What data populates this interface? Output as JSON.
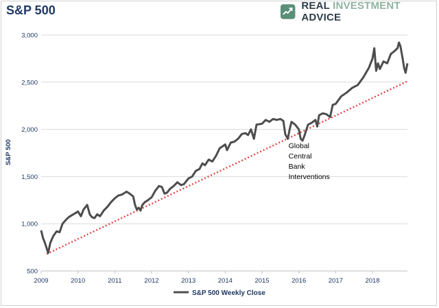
{
  "chart_data": {
    "type": "line",
    "title": "S&P 500",
    "ylabel": "S&P 500",
    "xlabel": "",
    "xlim": [
      2009,
      2018.95
    ],
    "ylim": [
      500,
      3000
    ],
    "yticks": [
      500,
      1000,
      1500,
      2000,
      2500,
      3000
    ],
    "ytick_labels": [
      "500",
      "1,000",
      "1,500",
      "2,000",
      "2,500",
      "3,000"
    ],
    "xticks": [
      2009,
      2010,
      2011,
      2012,
      2013,
      2014,
      2015,
      2016,
      2017,
      2018
    ],
    "xtick_labels": [
      "2009",
      "2010",
      "2011",
      "2012",
      "2013",
      "2014",
      "2015",
      "2016",
      "2017",
      "2018"
    ],
    "grid": "horizontal",
    "legend": "bottom-center",
    "series": [
      {
        "name": "S&P 500 Weekly Close",
        "color": "#4d4d4d",
        "x": [
          2009.0,
          2009.05,
          2009.1,
          2009.15,
          2009.19,
          2009.25,
          2009.33,
          2009.42,
          2009.5,
          2009.58,
          2009.67,
          2009.75,
          2009.83,
          2009.92,
          2010.0,
          2010.08,
          2010.15,
          2010.25,
          2010.32,
          2010.38,
          2010.45,
          2010.52,
          2010.6,
          2010.7,
          2010.8,
          2010.9,
          2011.0,
          2011.1,
          2011.2,
          2011.32,
          2011.4,
          2011.5,
          2011.55,
          2011.6,
          2011.65,
          2011.7,
          2011.75,
          2011.82,
          2011.9,
          2012.0,
          2012.1,
          2012.2,
          2012.28,
          2012.35,
          2012.42,
          2012.5,
          2012.6,
          2012.7,
          2012.8,
          2012.88,
          2013.0,
          2013.1,
          2013.2,
          2013.3,
          2013.38,
          2013.45,
          2013.55,
          2013.65,
          2013.75,
          2013.85,
          2014.0,
          2014.05,
          2014.15,
          2014.25,
          2014.35,
          2014.45,
          2014.55,
          2014.62,
          2014.7,
          2014.78,
          2014.85,
          2015.0,
          2015.1,
          2015.2,
          2015.3,
          2015.4,
          2015.5,
          2015.58,
          2015.63,
          2015.7,
          2015.75,
          2015.8,
          2015.9,
          2016.0,
          2016.05,
          2016.1,
          2016.15,
          2016.25,
          2016.35,
          2016.45,
          2016.5,
          2016.55,
          2016.65,
          2016.75,
          2016.85,
          2016.92,
          2017.0,
          2017.15,
          2017.3,
          2017.45,
          2017.6,
          2017.75,
          2017.9,
          2018.0,
          2018.05,
          2018.1,
          2018.15,
          2018.2,
          2018.3,
          2018.4,
          2018.5,
          2018.6,
          2018.68,
          2018.72,
          2018.76,
          2018.82,
          2018.86,
          2018.9,
          2018.95
        ],
        "values": [
          930,
          850,
          800,
          740,
          690,
          800,
          870,
          920,
          910,
          1000,
          1040,
          1070,
          1090,
          1110,
          1130,
          1080,
          1150,
          1200,
          1100,
          1070,
          1060,
          1100,
          1080,
          1140,
          1180,
          1230,
          1270,
          1300,
          1310,
          1340,
          1320,
          1290,
          1200,
          1150,
          1170,
          1140,
          1200,
          1230,
          1250,
          1280,
          1350,
          1400,
          1390,
          1320,
          1330,
          1370,
          1400,
          1440,
          1410,
          1420,
          1480,
          1500,
          1560,
          1580,
          1640,
          1620,
          1680,
          1660,
          1720,
          1800,
          1840,
          1780,
          1860,
          1870,
          1900,
          1950,
          1960,
          1940,
          2000,
          1900,
          2050,
          2060,
          2100,
          2080,
          2110,
          2100,
          2110,
          2090,
          1950,
          1900,
          2000,
          2080,
          2050,
          2000,
          1900,
          1880,
          1930,
          2050,
          2070,
          2100,
          2030,
          2150,
          2170,
          2160,
          2130,
          2260,
          2270,
          2350,
          2390,
          2440,
          2470,
          2550,
          2650,
          2750,
          2860,
          2620,
          2700,
          2640,
          2720,
          2700,
          2800,
          2830,
          2860,
          2920,
          2880,
          2750,
          2650,
          2600,
          2700
        ],
        "line_width": "thick"
      }
    ],
    "trendline": {
      "style": "dotted",
      "color": "#e04b4b",
      "x": [
        2009.15,
        2018.95
      ],
      "values": [
        680,
        2510
      ]
    },
    "annotations": [
      {
        "text_lines": [
          "Global",
          "Central",
          "Bank",
          "Interventions"
        ],
        "x": 2015.72,
        "y": 1800
      }
    ]
  },
  "header": {
    "title": "S&P 500",
    "brand_text_main": "REAL ",
    "brand_text_accent": "INVESTMENT",
    "brand_text_end": " ADVICE",
    "brand_logo_icon": "chart-trend-logo",
    "brand_color": "#5a8f78"
  }
}
